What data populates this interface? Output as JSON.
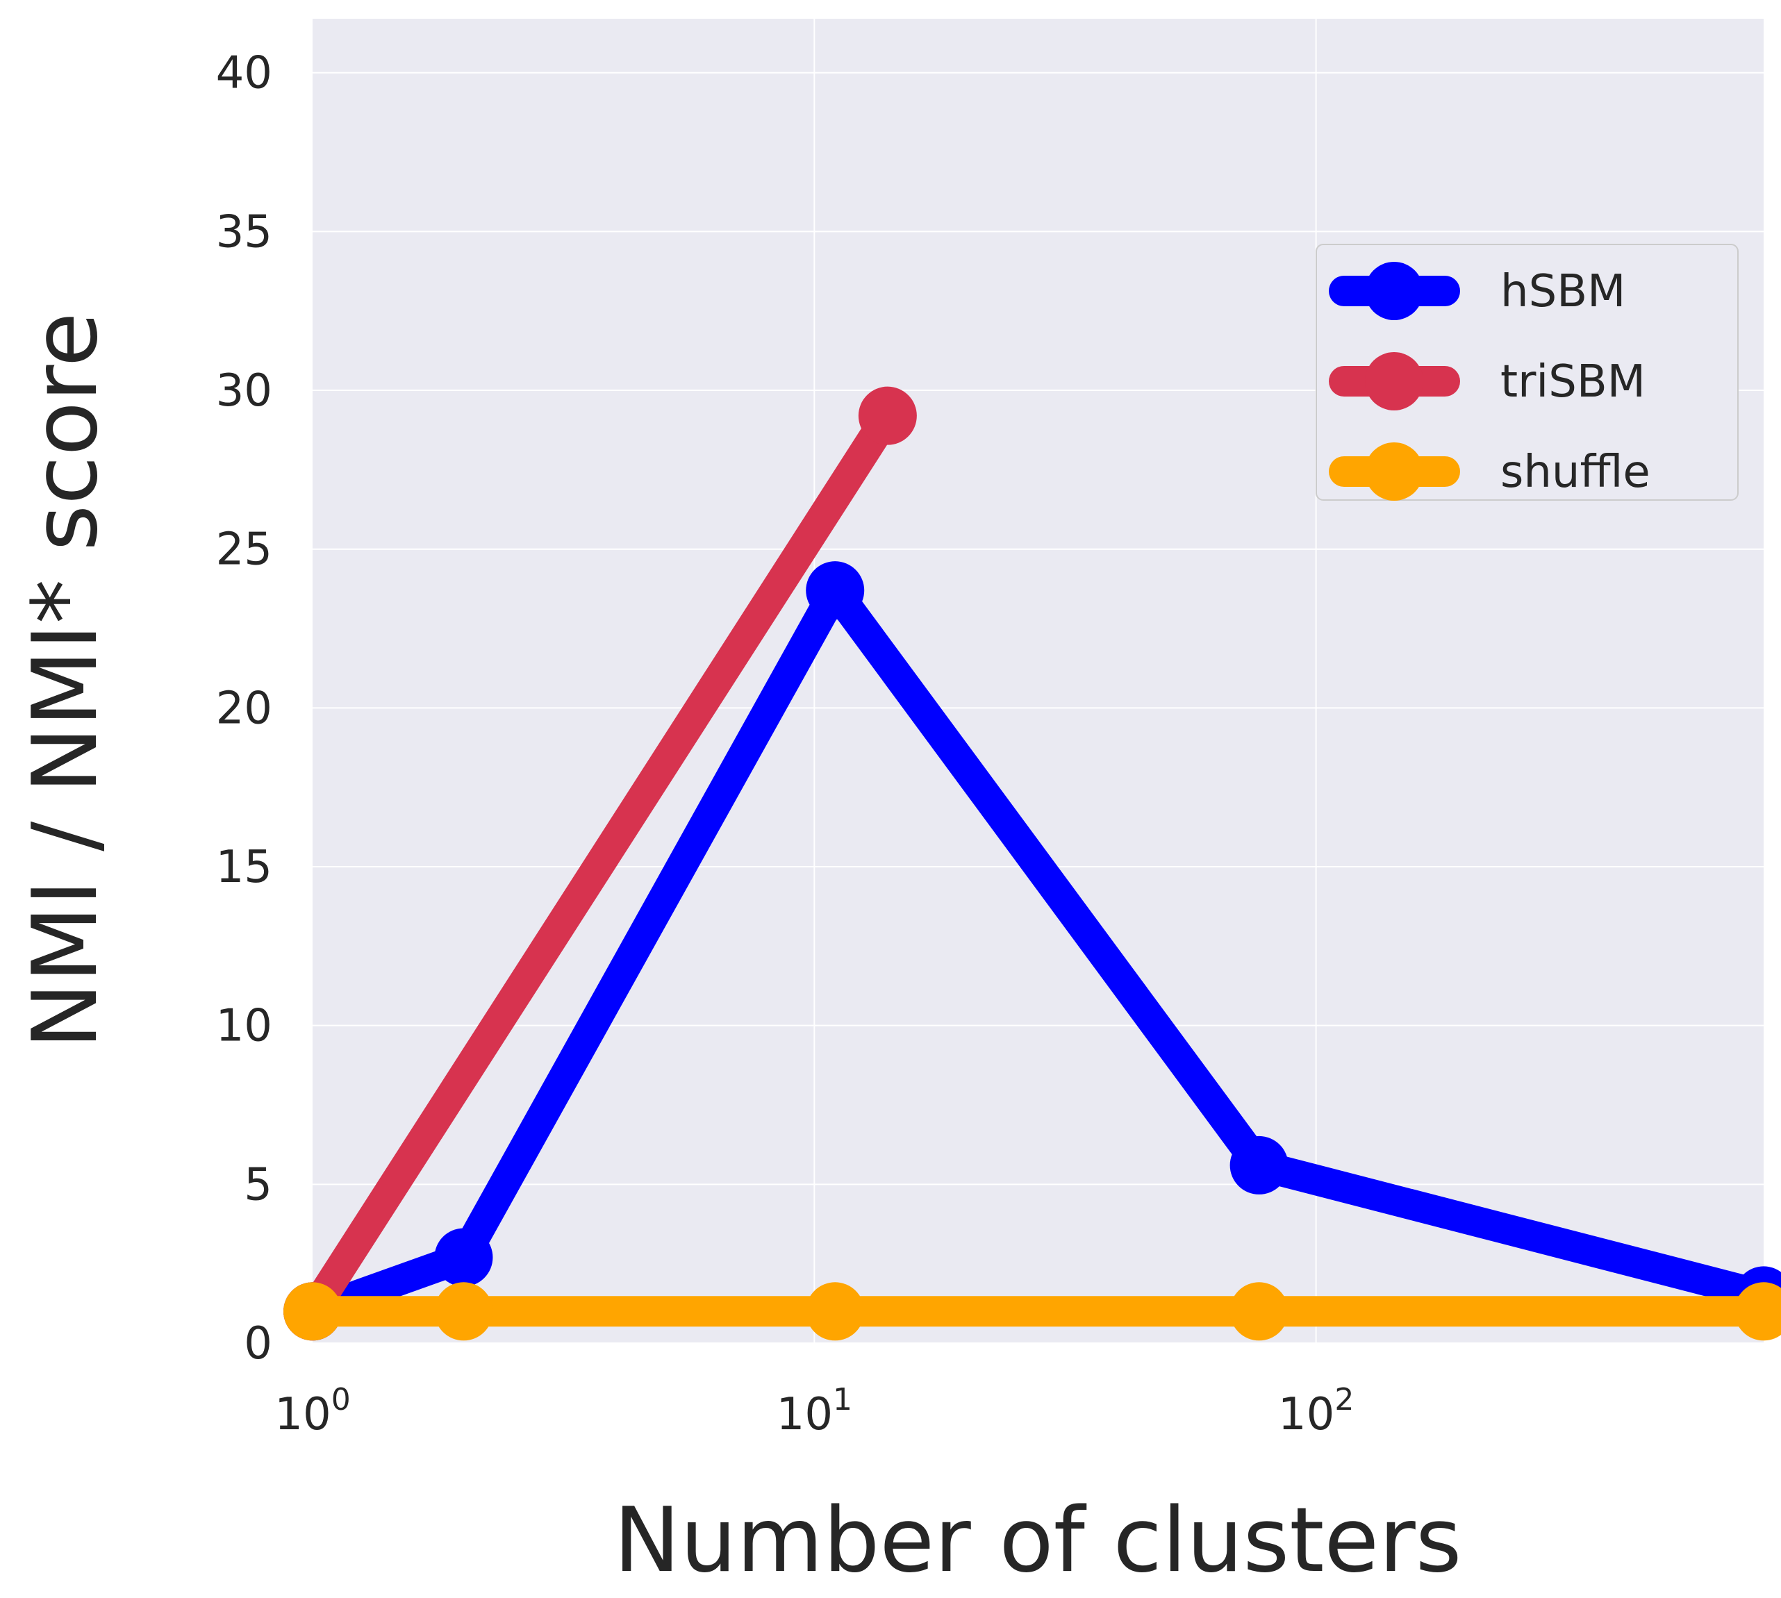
{
  "chart_data": {
    "type": "line",
    "title": "",
    "xlabel": "Number of clusters",
    "ylabel": "NMI / NMI* score",
    "xscale": "log",
    "xlim": [
      1,
      780
    ],
    "ylim": [
      0,
      41.7
    ],
    "grid": true,
    "x_ticks": [
      {
        "value": 1,
        "base": "10",
        "exponent": "0"
      },
      {
        "value": 10,
        "base": "10",
        "exponent": "1"
      },
      {
        "value": 100,
        "base": "10",
        "exponent": "2"
      }
    ],
    "y_ticks": [
      {
        "value": 0,
        "label": "0"
      },
      {
        "value": 5,
        "label": "5"
      },
      {
        "value": 10,
        "label": "10"
      },
      {
        "value": 15,
        "label": "15"
      },
      {
        "value": 20,
        "label": "20"
      },
      {
        "value": 25,
        "label": "25"
      },
      {
        "value": 30,
        "label": "30"
      },
      {
        "value": 35,
        "label": "35"
      },
      {
        "value": 40,
        "label": "40"
      }
    ],
    "legend_position": "upper-right",
    "series": [
      {
        "name": "hSBM",
        "color": "#0000ff",
        "x": [
          1,
          2,
          11,
          77,
          780
        ],
        "y": [
          1.0,
          2.7,
          23.7,
          5.6,
          1.5
        ]
      },
      {
        "name": "triSBM",
        "color": "#d7334f",
        "x": [
          1,
          14
        ],
        "y": [
          1.0,
          29.2
        ]
      },
      {
        "name": "shuffle",
        "color": "#ffa500",
        "x": [
          1,
          2,
          11,
          77,
          780
        ],
        "y": [
          1.0,
          1.0,
          1.0,
          1.0,
          1.0
        ]
      }
    ]
  }
}
